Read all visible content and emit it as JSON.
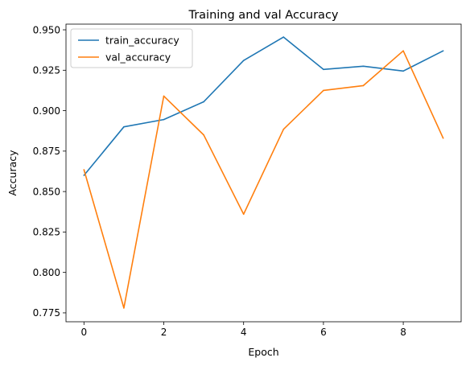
{
  "chart_data": {
    "type": "line",
    "title": "Training and val Accuracy",
    "xlabel": "Epoch",
    "ylabel": "Accuracy",
    "x": [
      0,
      1,
      2,
      3,
      4,
      5,
      6,
      7,
      8,
      9
    ],
    "xlim": [
      -0.45,
      9.45
    ],
    "ylim": [
      0.7695,
      0.9535
    ],
    "xticks": [
      0,
      2,
      4,
      6,
      8
    ],
    "yticks": [
      0.775,
      0.8,
      0.825,
      0.85,
      0.875,
      0.9,
      0.925,
      0.95
    ],
    "ytick_labels": [
      "0.775",
      "0.800",
      "0.825",
      "0.850",
      "0.875",
      "0.900",
      "0.925",
      "0.950"
    ],
    "grid": false,
    "legend_position": "top-left",
    "series": [
      {
        "name": "train_accuracy",
        "color": "#1f77b4",
        "values": [
          0.86,
          0.89,
          0.8945,
          0.9055,
          0.931,
          0.9455,
          0.9255,
          0.9275,
          0.9245,
          0.937
        ]
      },
      {
        "name": "val_accuracy",
        "color": "#ff7f0e",
        "values": [
          0.8635,
          0.778,
          0.909,
          0.885,
          0.836,
          0.8885,
          0.9125,
          0.9155,
          0.937,
          0.883
        ]
      }
    ]
  }
}
